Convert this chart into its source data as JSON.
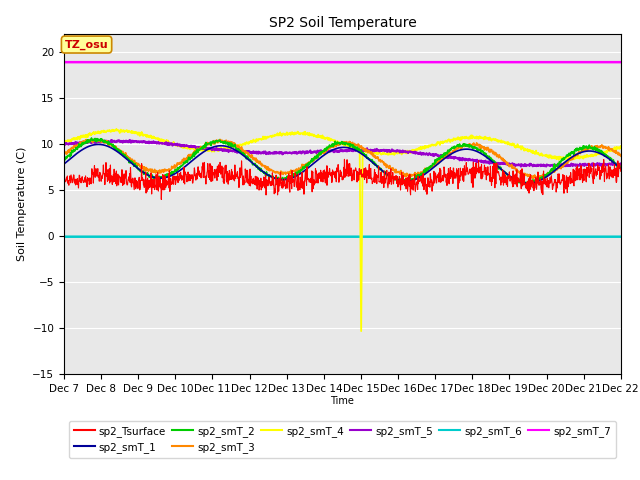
{
  "title": "SP2 Soil Temperature",
  "ylabel": "Soil Temperature (C)",
  "xlabel": "Time",
  "ylim": [
    -15,
    22
  ],
  "yticks": [
    -15,
    -10,
    -5,
    0,
    5,
    10,
    15,
    20
  ],
  "bg_color": "#e8e8e8",
  "annotation_text": "TZ_osu",
  "annotation_color": "#cc0000",
  "annotation_bg": "#ffff99",
  "annotation_border": "#cc8800",
  "n_points": 1500,
  "date_labels": [
    "Dec 7",
    "Dec 8",
    "Dec 9",
    "Dec 10",
    "Dec 11",
    "Dec 12",
    "Dec 13",
    "Dec 14",
    "Dec 15",
    "Dec 16",
    "Dec 17",
    "Dec 18",
    "Dec 19",
    "Dec 20",
    "Dec 21",
    "Dec 22"
  ],
  "series_colors": {
    "sp2_Tsurface": "#ff0000",
    "sp2_smT_1": "#000099",
    "sp2_smT_2": "#00cc00",
    "sp2_smT_3": "#ff8800",
    "sp2_smT_4": "#ffff00",
    "sp2_smT_5": "#9900cc",
    "sp2_smT_6": "#00cccc",
    "sp2_smT_7": "#ff00ff"
  }
}
